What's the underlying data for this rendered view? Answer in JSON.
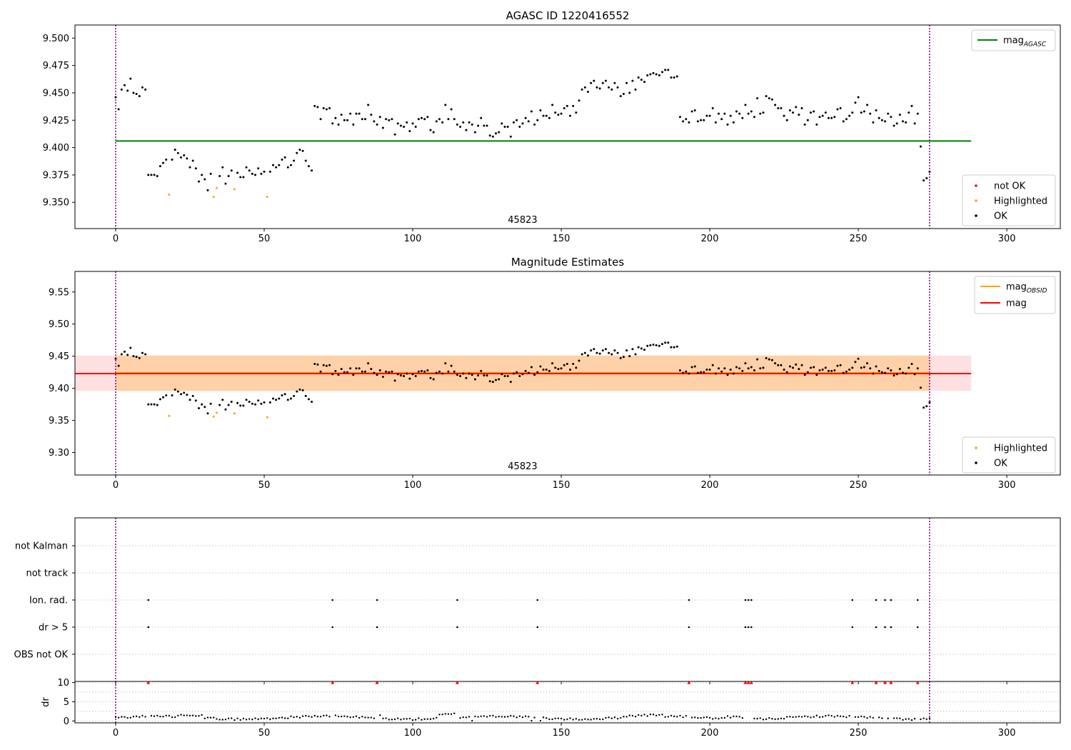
{
  "chart_data": [
    {
      "type": "scatter",
      "title": "AGASC ID 1220416552",
      "annotation": "45823",
      "xlim": [
        -13.7,
        318
      ],
      "ylim": [
        9.326,
        9.512
      ],
      "xticks": [
        0,
        50,
        100,
        150,
        200,
        250,
        300
      ],
      "yticks": [
        9.35,
        9.375,
        9.4,
        9.425,
        9.45,
        9.475,
        9.5
      ],
      "ytick_labels": [
        "9.350",
        "9.375",
        "9.400",
        "9.425",
        "9.450",
        "9.475",
        "9.500"
      ],
      "vlines": [
        0,
        274
      ],
      "hline_series": {
        "name_base": "mag",
        "name_sub": "AGASC",
        "y": 9.406,
        "x": [
          0,
          288
        ],
        "color": "#008000"
      },
      "legend_lines": [
        {
          "name_base": "mag",
          "name_sub": "AGASC",
          "color": "#008000"
        }
      ],
      "legend_markers": [
        {
          "name": "not OK",
          "color": "#ff0000"
        },
        {
          "name": "Highlighted",
          "color": "#ffa500"
        },
        {
          "name": "OK",
          "color": "#000000"
        }
      ],
      "legend_placement": "top-right and bottom-right",
      "series": [
        {
          "name": "Highlighted",
          "color": "#ffa500",
          "points": [
            [
              18,
              9.357
            ],
            [
              33,
              9.355
            ],
            [
              34,
              9.363
            ],
            [
              40,
              9.362
            ],
            [
              51,
              9.355
            ]
          ]
        },
        {
          "name": "OK",
          "color": "#000000",
          "points": []
        }
      ]
    },
    {
      "type": "scatter",
      "title": "Magnitude Estimates",
      "annotation": "45823",
      "xlim": [
        -13.7,
        318
      ],
      "ylim": [
        9.265,
        9.582
      ],
      "xticks": [
        0,
        50,
        100,
        150,
        200,
        250,
        300
      ],
      "yticks": [
        9.3,
        9.35,
        9.4,
        9.45,
        9.5,
        9.55
      ],
      "ytick_labels": [
        "9.30",
        "9.35",
        "9.40",
        "9.45",
        "9.50",
        "9.55"
      ],
      "vlines": [
        0,
        274
      ],
      "bands": [
        {
          "y0": 9.396,
          "y1": 9.451,
          "x": [
            -13.7,
            288
          ],
          "color": "#ff0000",
          "opacity": 0.12
        },
        {
          "y0": 9.396,
          "y1": 9.451,
          "x": [
            0,
            274
          ],
          "color": "#ffa500",
          "opacity": 0.25
        }
      ],
      "lines": [
        {
          "name_base": "mag",
          "name_sub": "OBSID",
          "y": 9.424,
          "x": [
            0,
            274
          ],
          "color": "#ffa500"
        },
        {
          "name_base": "mag",
          "name_sub": "",
          "y": 9.423,
          "x": [
            -13.7,
            288
          ],
          "color": "#ff0000"
        }
      ],
      "legend_lines": [
        {
          "name_base": "mag",
          "name_sub": "OBSID",
          "color": "#ffa500"
        },
        {
          "name_base": "mag",
          "name_sub": "",
          "color": "#ff0000"
        }
      ],
      "legend_markers": [
        {
          "name": "Highlighted",
          "color": "#ffa500"
        },
        {
          "name": "OK",
          "color": "#000000"
        }
      ],
      "series": [
        {
          "name": "Highlighted",
          "color": "#ffa500",
          "points": [
            [
              18,
              9.357
            ],
            [
              33,
              9.356
            ],
            [
              34,
              9.362
            ],
            [
              40,
              9.361
            ],
            [
              51,
              9.355
            ]
          ]
        },
        {
          "name": "OK",
          "color": "#000000",
          "points": []
        }
      ]
    },
    {
      "type": "scatter",
      "title": "",
      "xlim": [
        -13.7,
        318
      ],
      "xticks": [
        0,
        50,
        100,
        150,
        200,
        250,
        300
      ],
      "categories": [
        "OBS not OK",
        "dr > 5",
        "Ion. rad.",
        "not track",
        "not Kalman"
      ],
      "vlines": [
        0,
        274
      ],
      "grid": true,
      "flag_series": [
        {
          "name": "dr > 5",
          "x": [
            11,
            73,
            88,
            115,
            142,
            193,
            212,
            213,
            214,
            248,
            256,
            259,
            261,
            270
          ]
        },
        {
          "name": "Ion. rad.",
          "x": [
            11,
            73,
            88,
            115,
            142,
            193,
            212,
            213,
            214,
            248,
            256,
            259,
            261,
            270
          ]
        }
      ]
    },
    {
      "type": "scatter",
      "title": "",
      "xlim": [
        -13.7,
        318
      ],
      "ylim": [
        -0.5,
        10.3
      ],
      "xticks": [
        0,
        50,
        100,
        150,
        200,
        250,
        300
      ],
      "yticks": [
        0,
        5,
        10
      ],
      "ylabel": "dr",
      "vlines": [
        0,
        274
      ],
      "grid": true,
      "clipped_series": {
        "name": "dr > 10",
        "color": "#ff0000",
        "y": 10,
        "x": [
          11,
          73,
          88,
          115,
          142,
          193,
          212,
          213,
          214,
          248,
          256,
          259,
          261,
          270
        ]
      },
      "series": [
        {
          "name": "dr",
          "color": "#000000",
          "points": []
        }
      ]
    }
  ]
}
